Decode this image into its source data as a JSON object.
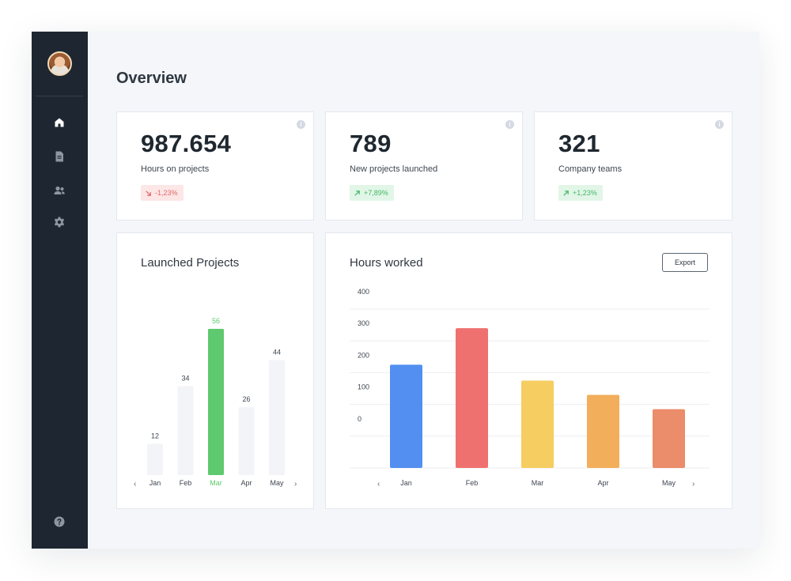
{
  "page": {
    "title": "Overview"
  },
  "sidebar": {
    "items": [
      {
        "name": "home",
        "icon": "home-icon"
      },
      {
        "name": "documents",
        "icon": "document-icon"
      },
      {
        "name": "users",
        "icon": "users-icon"
      },
      {
        "name": "settings",
        "icon": "gear-icon"
      }
    ],
    "help_icon": "help-icon"
  },
  "stats": [
    {
      "value": "987.654",
      "label": "Hours on projects",
      "change": "-1,23%",
      "trend": "down"
    },
    {
      "value": "789",
      "label": "New projects launched",
      "change": "+7,89%",
      "trend": "up"
    },
    {
      "value": "321",
      "label": "Company teams",
      "change": "+1,23%",
      "trend": "up"
    }
  ],
  "launched": {
    "title": "Launched Projects",
    "prev": "‹",
    "next": "›",
    "chart_data": {
      "type": "bar",
      "categories": [
        "Jan",
        "Feb",
        "Mar",
        "Apr",
        "May"
      ],
      "values": [
        12,
        34,
        56,
        26,
        44
      ],
      "highlight": "Mar",
      "colors": {
        "default": "#f3f4f8",
        "highlight": "#5ec96f",
        "highlight_text": "#5ec96f"
      }
    }
  },
  "hours": {
    "title": "Hours worked",
    "export_label": "Export",
    "prev": "‹",
    "next": "›",
    "chart_data": {
      "type": "bar",
      "categories": [
        "Jan",
        "Feb",
        "Mar",
        "Apr",
        "May"
      ],
      "values": [
        225,
        340,
        175,
        130,
        85
      ],
      "ylim": [
        -100,
        400
      ],
      "yticks": [
        0,
        100,
        200,
        300,
        400
      ],
      "grid": true,
      "colors": [
        "#528ff0",
        "#ee7170",
        "#f6cd60",
        "#f2ae5a",
        "#eb8c6a"
      ]
    }
  }
}
